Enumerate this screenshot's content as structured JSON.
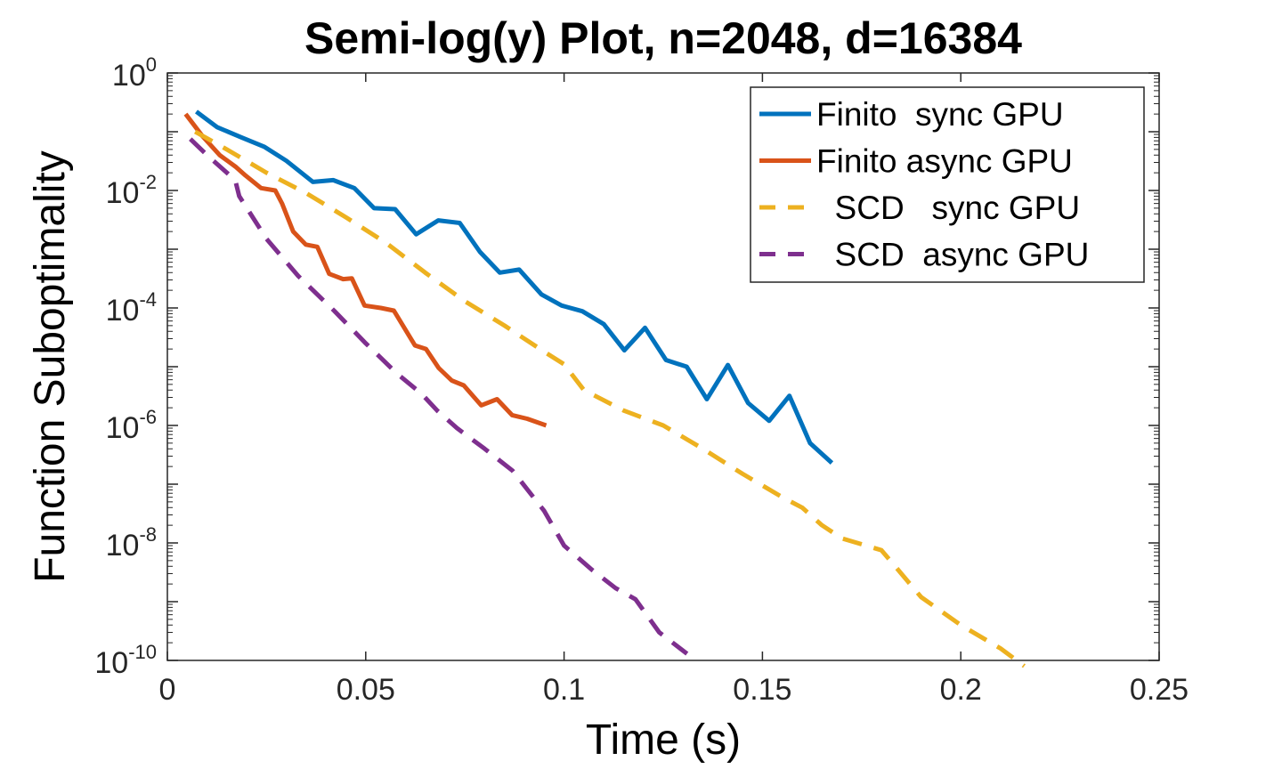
{
  "chart_data": {
    "type": "line",
    "title": "Semi-log(y) Plot, n=2048, d=16384",
    "xlabel": "Time (s)",
    "ylabel": "Function Suboptimality",
    "xlim": [
      0,
      0.25
    ],
    "ylim": [
      1e-10,
      1
    ],
    "yscale": "log",
    "grid": false,
    "legend_position": "top-right",
    "x_ticks": [
      "0",
      "0.05",
      "0.1",
      "0.15",
      "0.2",
      "0.25"
    ],
    "x_tick_values": [
      0,
      0.05,
      0.1,
      0.15,
      0.2,
      0.25
    ],
    "y_ticks": [
      {
        "base": "10",
        "exp": "0",
        "value": 1
      },
      {
        "base": "10",
        "exp": "-2",
        "value": 0.01
      },
      {
        "base": "10",
        "exp": "-4",
        "value": 0.0001
      },
      {
        "base": "10",
        "exp": "-6",
        "value": 1e-06
      },
      {
        "base": "10",
        "exp": "-8",
        "value": 1e-08
      },
      {
        "base": "10",
        "exp": "-10",
        "value": 1e-10
      }
    ],
    "series": [
      {
        "name": "Finito  sync GPU",
        "color": "#0072BD",
        "dash": "solid",
        "x": [
          0.0073,
          0.0125,
          0.0187,
          0.0245,
          0.03,
          0.0367,
          0.0418,
          0.0471,
          0.0521,
          0.0574,
          0.0627,
          0.0683,
          0.0737,
          0.0788,
          0.0838,
          0.0887,
          0.0943,
          0.0994,
          0.1046,
          0.11,
          0.1152,
          0.1204,
          0.1257,
          0.1309,
          0.136,
          0.1413,
          0.1464,
          0.1517,
          0.1568,
          0.162,
          0.1675
        ],
        "y": [
          0.22,
          0.12,
          0.08,
          0.055,
          0.032,
          0.014,
          0.015,
          0.011,
          0.005,
          0.0048,
          0.0018,
          0.0031,
          0.0028,
          0.0009,
          0.0004,
          0.00045,
          0.00017,
          0.00011,
          8.8e-05,
          5.3e-05,
          1.9e-05,
          4.6e-05,
          1.3e-05,
          1e-05,
          2.8e-06,
          1.07e-05,
          2.4e-06,
          1.2e-06,
          3.2e-06,
          5e-07,
          2.3e-07
        ]
      },
      {
        "name": "Finito async GPU",
        "color": "#D95319",
        "dash": "solid",
        "x": [
          0.0046,
          0.0088,
          0.0132,
          0.0173,
          0.0197,
          0.0236,
          0.0272,
          0.0289,
          0.0317,
          0.0349,
          0.0378,
          0.0408,
          0.0443,
          0.0465,
          0.0497,
          0.0538,
          0.0571,
          0.0624,
          0.0652,
          0.0684,
          0.0717,
          0.0747,
          0.0791,
          0.0831,
          0.0869,
          0.0907,
          0.0955
        ],
        "y": [
          0.2,
          0.085,
          0.04,
          0.025,
          0.018,
          0.011,
          0.01,
          0.006,
          0.002,
          0.0012,
          0.0011,
          0.00038,
          0.00031,
          0.00032,
          0.00011,
          0.0001,
          9e-05,
          2.3e-05,
          2e-05,
          9.5e-06,
          5.8e-06,
          4.8e-06,
          2.2e-06,
          2.8e-06,
          1.5e-06,
          1.3e-06,
          1e-06
        ]
      },
      {
        "name": "  SCD   sync GPU",
        "color": "#EDB120",
        "dash": "dashed",
        "x": [
          0.007,
          0.015,
          0.025,
          0.035,
          0.045,
          0.055,
          0.065,
          0.075,
          0.085,
          0.095,
          0.1,
          0.105,
          0.115,
          0.125,
          0.135,
          0.145,
          0.155,
          0.16,
          0.165,
          0.17,
          0.18,
          0.185,
          0.19,
          0.2,
          0.21,
          0.216
        ],
        "y": [
          0.1,
          0.05,
          0.02,
          0.009,
          0.0035,
          0.0013,
          0.0004,
          0.00013,
          5e-05,
          1.8e-05,
          1.1e-05,
          4e-06,
          1.8e-06,
          1e-06,
          4e-07,
          1.5e-07,
          6e-08,
          4e-08,
          2e-08,
          1.2e-08,
          7.5e-09,
          3e-09,
          1.2e-09,
          4e-10,
          1.6e-10,
          8e-11
        ]
      },
      {
        "name": "  SCD  async GPU",
        "color": "#7E2F8E",
        "dash": "dashed",
        "x": [
          0.0058,
          0.01,
          0.0171,
          0.0181,
          0.025,
          0.033,
          0.042,
          0.05,
          0.058,
          0.064,
          0.068,
          0.073,
          0.08,
          0.087,
          0.095,
          0.1,
          0.107,
          0.113,
          0.118,
          0.124,
          0.131
        ],
        "y": [
          0.075,
          0.04,
          0.015,
          0.008,
          0.0015,
          0.00035,
          9e-05,
          2.5e-05,
          7.5e-06,
          3.5e-06,
          1.8e-06,
          9e-07,
          4e-07,
          1.7e-07,
          3.5e-08,
          9e-09,
          3.5e-09,
          1.7e-09,
          1.1e-09,
          3e-10,
          1.3e-10
        ]
      }
    ]
  }
}
